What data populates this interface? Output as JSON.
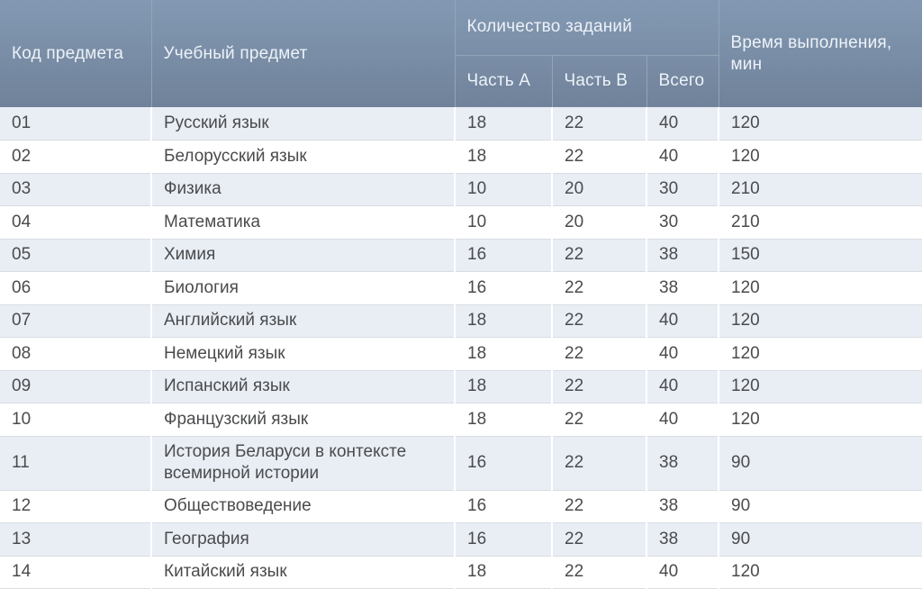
{
  "table": {
    "header": {
      "code": "Код предмета",
      "subject": "Учебный предмет",
      "tasks_group": "Количество заданий",
      "part_a": "Часть А",
      "part_b": "Часть В",
      "total": "Всего",
      "time": "Время выполнения,\nмин"
    },
    "rows": [
      {
        "code": "01",
        "subject": "Русский язык",
        "part_a": "18",
        "part_b": "22",
        "total": "40",
        "time": "120"
      },
      {
        "code": "02",
        "subject": "Белорусский язык",
        "part_a": "18",
        "part_b": "22",
        "total": "40",
        "time": "120"
      },
      {
        "code": "03",
        "subject": "Физика",
        "part_a": "10",
        "part_b": "20",
        "total": "30",
        "time": "210"
      },
      {
        "code": "04",
        "subject": "Математика",
        "part_a": "10",
        "part_b": "20",
        "total": "30",
        "time": "210"
      },
      {
        "code": "05",
        "subject": "Химия",
        "part_a": "16",
        "part_b": "22",
        "total": "38",
        "time": "150"
      },
      {
        "code": "06",
        "subject": "Биология",
        "part_a": "16",
        "part_b": "22",
        "total": "38",
        "time": "120"
      },
      {
        "code": "07",
        "subject": "Английский язык",
        "part_a": "18",
        "part_b": "22",
        "total": "40",
        "time": "120"
      },
      {
        "code": "08",
        "subject": "Немецкий язык",
        "part_a": "18",
        "part_b": "22",
        "total": "40",
        "time": "120"
      },
      {
        "code": "09",
        "subject": "Испанский язык",
        "part_a": "18",
        "part_b": "22",
        "total": "40",
        "time": "120"
      },
      {
        "code": "10",
        "subject": "Французский язык",
        "part_a": "18",
        "part_b": "22",
        "total": "40",
        "time": "120"
      },
      {
        "code": "11",
        "subject": "История Беларуси в контексте\nвсемирной истории",
        "part_a": "16",
        "part_b": "22",
        "total": "38",
        "time": "90"
      },
      {
        "code": "12",
        "subject": "Обществоведение",
        "part_a": "16",
        "part_b": "22",
        "total": "38",
        "time": "90"
      },
      {
        "code": "13",
        "subject": "География",
        "part_a": "16",
        "part_b": "22",
        "total": "38",
        "time": "90"
      },
      {
        "code": "14",
        "subject": "Китайский язык",
        "part_a": "18",
        "part_b": "22",
        "total": "40",
        "time": "120"
      }
    ],
    "colors": {
      "header_gradient_top": "#8399b3",
      "header_gradient_bottom": "#70829a",
      "header_divider": "#93a5b8",
      "header_text": "#edf2f8",
      "row_alt_background": "#e9eef5",
      "row_plain_background": "#ffffff",
      "row_border": "#d9dce1",
      "cell_divider": "#ffffff",
      "body_text": "#4a4b4d"
    }
  }
}
